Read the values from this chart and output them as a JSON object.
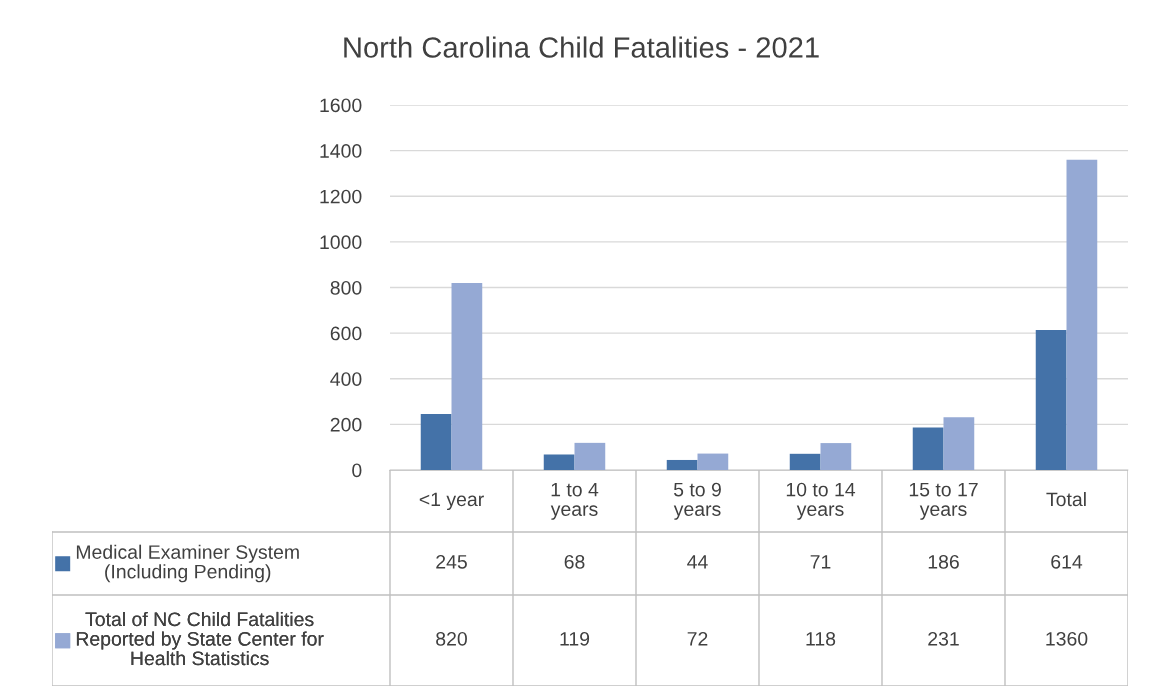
{
  "chart_data": {
    "type": "bar",
    "title": "North Carolina Child Fatalities - 2021",
    "categories": [
      "<1 year",
      "1 to 4\nyears",
      "5 to 9\nyears",
      "10 to 14\nyears",
      "15 to 17\nyears",
      "Total"
    ],
    "series": [
      {
        "name": "Medical Examiner System\n(Including Pending)",
        "color": "#4472a8",
        "values": [
          245,
          68,
          44,
          71,
          186,
          614
        ]
      },
      {
        "name": "Total of NC Child Fatalities\nReported by State Center for\nHealth Statistics",
        "color": "#95a9d4",
        "values": [
          820,
          119,
          72,
          118,
          231,
          1360
        ]
      }
    ],
    "ylim": [
      0,
      1600
    ],
    "yticks": [
      0,
      200,
      400,
      600,
      800,
      1000,
      1200,
      1400,
      1600
    ],
    "grid": "y",
    "data_labels": true,
    "legend": "bottom left"
  }
}
